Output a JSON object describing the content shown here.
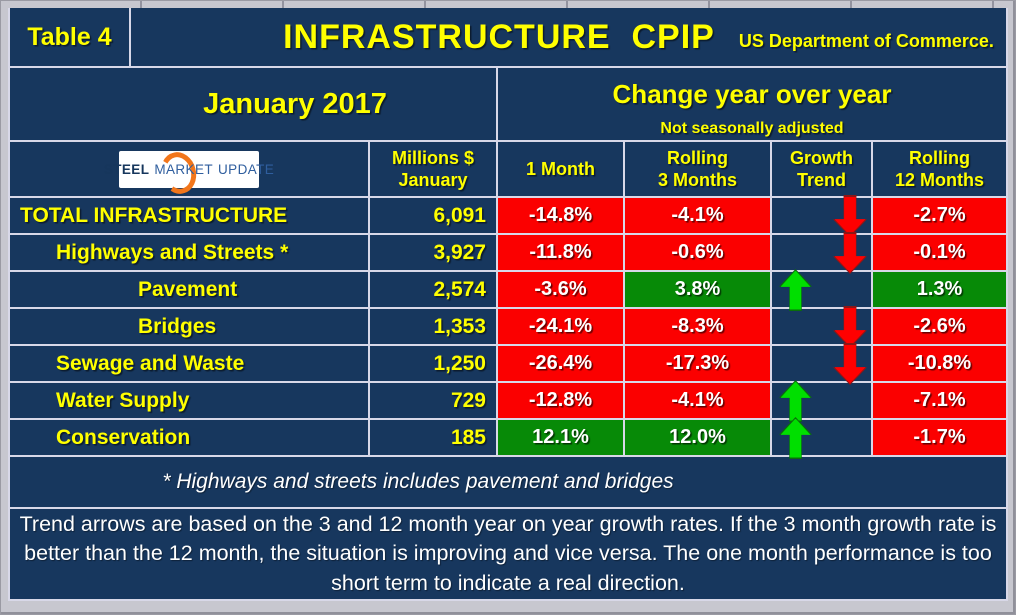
{
  "title_bar": {
    "table_label": "Table 4",
    "title": "INFRASTRUCTURE  CPIP",
    "agency": "US Department of Commerce."
  },
  "period_panel": {
    "period": "January 2017"
  },
  "change_panel": {
    "heading": "Change year over year",
    "note": "Not seasonally adjusted"
  },
  "logo": {
    "steel": "STEEL",
    "market": "MARKET",
    "update": "UPDATE"
  },
  "column_headers": {
    "millions_line1": "Millions $",
    "millions_line2": "January",
    "one_month": "1 Month",
    "rolling3_line1": "Rolling",
    "rolling3_line2": "3 Months",
    "growth_line1": "Growth",
    "growth_line2": "Trend",
    "rolling12_line1": "Rolling",
    "rolling12_line2": "12 Months"
  },
  "rows": [
    {
      "label": "TOTAL INFRASTRUCTURE",
      "indent_class": "ind0",
      "millions": "6,091",
      "m1": "-14.8%",
      "m1_class": "neg",
      "m3": "-4.1%",
      "m3_class": "neg",
      "trend": "down",
      "m12": "-2.7%",
      "m12_class": "neg"
    },
    {
      "label": "Highways and Streets *",
      "indent_class": "ind1",
      "millions": "3,927",
      "m1": "-11.8%",
      "m1_class": "neg",
      "m3": "-0.6%",
      "m3_class": "neg",
      "trend": "down",
      "m12": "-0.1%",
      "m12_class": "neg"
    },
    {
      "label": "Pavement",
      "indent_class": "ind2",
      "millions": "2,574",
      "m1": "-3.6%",
      "m1_class": "neg",
      "m3": "3.8%",
      "m3_class": "pos",
      "trend": "up",
      "m12": "1.3%",
      "m12_class": "pos"
    },
    {
      "label": "Bridges",
      "indent_class": "ind2",
      "millions": "1,353",
      "m1": "-24.1%",
      "m1_class": "neg",
      "m3": "-8.3%",
      "m3_class": "neg",
      "trend": "down",
      "m12": "-2.6%",
      "m12_class": "neg"
    },
    {
      "label": "Sewage and Waste",
      "indent_class": "ind1",
      "millions": "1,250",
      "m1": "-26.4%",
      "m1_class": "neg",
      "m3": "-17.3%",
      "m3_class": "neg",
      "trend": "down",
      "m12": "-10.8%",
      "m12_class": "neg"
    },
    {
      "label": "Water Supply",
      "indent_class": "ind1",
      "millions": "729",
      "m1": "-12.8%",
      "m1_class": "neg",
      "m3": "-4.1%",
      "m3_class": "neg",
      "trend": "up",
      "m12": "-7.1%",
      "m12_class": "neg"
    },
    {
      "label": "Conservation",
      "indent_class": "ind1",
      "millions": "185",
      "m1": "12.1%",
      "m1_class": "pos",
      "m3": "12.0%",
      "m3_class": "pos",
      "trend": "up",
      "m12": "-1.7%",
      "m12_class": "neg"
    }
  ],
  "footnote": "* Highways and streets includes pavement and bridges",
  "description": "Trend arrows are based on the 3 and 12 month year on year growth rates. If the 3 month growth rate is better than the 12 month, the situation is improving and vice versa. The one month performance is too short term to indicate a real direction.",
  "chart_data": {
    "type": "table",
    "title": "INFRASTRUCTURE CPIP",
    "subtitle": "US Department of Commerce.",
    "period": "January 2017",
    "change_header": "Change year over year",
    "change_note": "Not seasonally adjusted",
    "columns": [
      "Millions $ January",
      "1 Month",
      "Rolling 3 Months",
      "Growth Trend",
      "Rolling 12 Months"
    ],
    "rows": [
      {
        "category": "TOTAL INFRASTRUCTURE",
        "millions_usd": 6091,
        "one_month_pct": -14.8,
        "rolling_3_months_pct": -4.1,
        "growth_trend": "down",
        "rolling_12_months_pct": -2.7
      },
      {
        "category": "Highways and Streets *",
        "millions_usd": 3927,
        "one_month_pct": -11.8,
        "rolling_3_months_pct": -0.6,
        "growth_trend": "down",
        "rolling_12_months_pct": -0.1
      },
      {
        "category": "Pavement",
        "millions_usd": 2574,
        "one_month_pct": -3.6,
        "rolling_3_months_pct": 3.8,
        "growth_trend": "up",
        "rolling_12_months_pct": 1.3
      },
      {
        "category": "Bridges",
        "millions_usd": 1353,
        "one_month_pct": -24.1,
        "rolling_3_months_pct": -8.3,
        "growth_trend": "down",
        "rolling_12_months_pct": -2.6
      },
      {
        "category": "Sewage and Waste",
        "millions_usd": 1250,
        "one_month_pct": -26.4,
        "rolling_3_months_pct": -17.3,
        "growth_trend": "down",
        "rolling_12_months_pct": -10.8
      },
      {
        "category": "Water Supply",
        "millions_usd": 729,
        "one_month_pct": -12.8,
        "rolling_3_months_pct": -4.1,
        "growth_trend": "up",
        "rolling_12_months_pct": -7.1
      },
      {
        "category": "Conservation",
        "millions_usd": 185,
        "one_month_pct": 12.1,
        "rolling_3_months_pct": 12.0,
        "growth_trend": "up",
        "rolling_12_months_pct": -1.7
      }
    ],
    "cell_color_rule": "red = negative, green = positive",
    "footnote": "* Highways and streets includes pavement and bridges"
  },
  "colors": {
    "background_navy": "#17375E",
    "grid_line": "#D8D8E8",
    "negative_red": "#FB0000",
    "positive_green": "#078A07",
    "accent_yellow": "#FFFF00",
    "arrow_up_green": "#00DF00",
    "arrow_down_red": "#FF0000",
    "frame_gray": "#C7C7CF",
    "logo_orange": "#F2761B",
    "logo_blue": "#2F5E9E"
  }
}
